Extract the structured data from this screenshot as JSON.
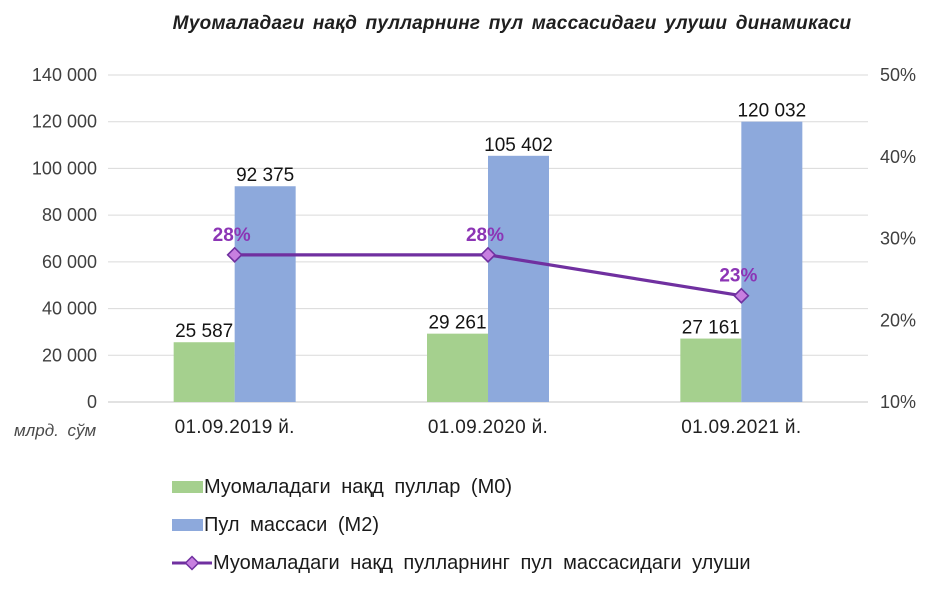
{
  "title": "Муомаладаги нақд пулларнинг пул массасидаги улуши динамикаси",
  "legend": [
    {
      "label": "Муомаладаги нақд пуллар (М0)",
      "type": "bar",
      "color": "#a5d08e"
    },
    {
      "label": "Пул массаси (М2)",
      "type": "bar",
      "color": "#8da9dc"
    },
    {
      "label": "Муомаладаги нақд пулларнинг пул массасидаги улуши",
      "type": "line",
      "color": "#7030a0",
      "marker_fill": "#c77fe0"
    }
  ],
  "colors": {
    "m0_green": "#a5d08e",
    "m2_blue": "#8da9dc",
    "share_purple": "#7030a0",
    "marker_fill": "#c77fe0",
    "share_label": "#8c35b5",
    "grid": "#dadada",
    "baseline": "#c4c4c4"
  },
  "chart_data": {
    "type": "combo (clustered bar + line on secondary axis)",
    "title": "Муомаладаги нақд пулларнинг пул массасидаги улуши динамикаси",
    "categories": [
      "01.09.2019 й.",
      "01.09.2020 й.",
      "01.09.2021 й."
    ],
    "series": [
      {
        "name": "Муомаладаги нақд пуллар (М0)",
        "type": "bar",
        "axis": "left",
        "color": "#a5d08e",
        "values": [
          25587,
          29261,
          27161
        ],
        "labels": [
          "25 587",
          "29 261",
          "27 161"
        ]
      },
      {
        "name": "Пул массаси (М2)",
        "type": "bar",
        "axis": "left",
        "color": "#8da9dc",
        "values": [
          92375,
          105402,
          120032
        ],
        "labels": [
          "92 375",
          "105 402",
          "120 032"
        ]
      },
      {
        "name": "Муомаладаги нақд пулларнинг пул массасидаги улуши",
        "type": "line",
        "axis": "right",
        "color": "#7030a0",
        "label_color": "#8c35b5",
        "marker": "diamond",
        "marker_fill": "#c77fe0",
        "values": [
          28,
          28,
          23
        ],
        "labels": [
          "28%",
          "28%",
          "23%"
        ]
      }
    ],
    "left_axis": {
      "min": 0,
      "max": 140000,
      "step": 20000,
      "ticks": [
        "0",
        "20 000",
        "40 000",
        "60 000",
        "80 000",
        "100 000",
        "120 000",
        "140 000"
      ],
      "unit": "млрд. сўм"
    },
    "right_axis": {
      "min": 10,
      "max": 50,
      "step": 10,
      "ticks": [
        "10%",
        "20%",
        "30%",
        "40%",
        "50%"
      ]
    },
    "grid": true,
    "legend_position": "bottom-left"
  }
}
